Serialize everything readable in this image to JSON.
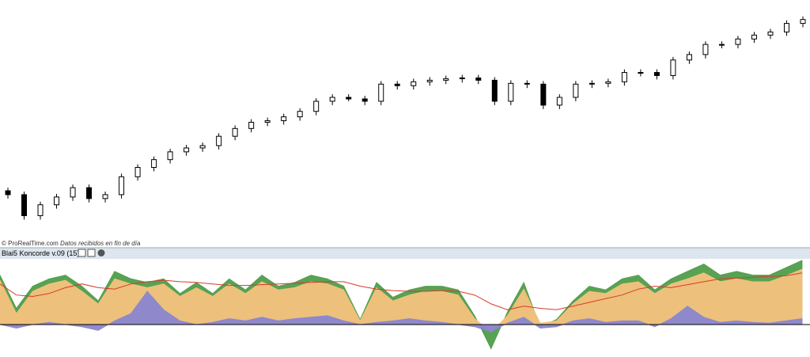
{
  "credit": "© ProRealTime.com",
  "credit_note": "Datos recibidos en fin de día",
  "chart_data": [
    {
      "type": "candlestick",
      "ylim": [
        0,
        300
      ],
      "up_color": "#ffffff",
      "down_color": "#000000",
      "open": [
        60,
        55,
        28,
        42,
        52,
        64,
        50,
        55,
        78,
        90,
        100,
        110,
        115,
        118,
        130,
        140,
        148,
        150,
        155,
        162,
        175,
        180,
        178,
        175,
        197,
        195,
        200,
        202,
        204,
        205,
        202,
        175,
        198,
        197,
        170,
        180,
        197,
        198,
        200,
        212,
        212,
        208,
        228,
        235,
        248,
        248,
        255,
        260,
        264,
        275
      ],
      "high": [
        64,
        59,
        46,
        56,
        68,
        68,
        59,
        82,
        94,
        104,
        114,
        119,
        122,
        134,
        144,
        152,
        154,
        159,
        166,
        179,
        184,
        184,
        182,
        201,
        201,
        204,
        206,
        208,
        209,
        209,
        206,
        202,
        202,
        201,
        184,
        201,
        202,
        204,
        216,
        216,
        216,
        232,
        239,
        252,
        252,
        259,
        264,
        268,
        279,
        284
      ],
      "low": [
        50,
        23,
        23,
        37,
        47,
        45,
        45,
        50,
        73,
        85,
        95,
        105,
        110,
        113,
        125,
        135,
        143,
        145,
        150,
        157,
        170,
        175,
        170,
        170,
        190,
        190,
        195,
        197,
        199,
        197,
        170,
        170,
        192,
        165,
        165,
        175,
        192,
        193,
        195,
        207,
        203,
        203,
        223,
        230,
        243,
        243,
        250,
        255,
        259,
        270
      ],
      "close": [
        55,
        28,
        42,
        52,
        64,
        50,
        55,
        78,
        90,
        100,
        110,
        115,
        118,
        130,
        140,
        148,
        150,
        155,
        162,
        175,
        180,
        178,
        175,
        197,
        195,
        200,
        202,
        204,
        205,
        202,
        175,
        198,
        197,
        170,
        180,
        197,
        198,
        200,
        212,
        212,
        208,
        228,
        235,
        248,
        248,
        255,
        260,
        264,
        275,
        280
      ]
    },
    {
      "type": "area",
      "title": "Blai5 Koncorde v.09 (15)",
      "ylim": [
        -44,
        89
      ],
      "series": [
        {
          "color": "#4f9d4a",
          "values": [
            67,
            22,
            52,
            62,
            67,
            52,
            32,
            72,
            62,
            57,
            62,
            42,
            57,
            42,
            62,
            47,
            67,
            52,
            57,
            67,
            62,
            52,
            7,
            57,
            37,
            47,
            52,
            52,
            47,
            12,
            -33,
            17,
            57,
            -3,
            7,
            32,
            52,
            47,
            62,
            67,
            47,
            62,
            72,
            82,
            67,
            72,
            67,
            67,
            77,
            87
          ]
        },
        {
          "color": "#f6c27e",
          "values": [
            60,
            15,
            45,
            55,
            60,
            45,
            28,
            62,
            55,
            50,
            55,
            38,
            50,
            38,
            55,
            42,
            58,
            47,
            50,
            58,
            55,
            47,
            5,
            50,
            32,
            40,
            45,
            45,
            40,
            8,
            -10,
            12,
            48,
            2,
            5,
            28,
            45,
            42,
            55,
            58,
            42,
            55,
            62,
            70,
            58,
            62,
            58,
            58,
            66,
            75
          ]
        },
        {
          "color": "#8a86d0",
          "values": [
            0,
            -5,
            0,
            3,
            0,
            -3,
            -8,
            5,
            15,
            45,
            20,
            5,
            0,
            3,
            8,
            5,
            10,
            5,
            8,
            10,
            12,
            5,
            0,
            3,
            5,
            8,
            5,
            3,
            0,
            -3,
            -10,
            2,
            10,
            -5,
            -3,
            5,
            8,
            3,
            5,
            5,
            -3,
            8,
            25,
            10,
            3,
            5,
            3,
            2,
            5,
            8
          ]
        },
        {
          "color": "#d83a2a",
          "style": "line",
          "values": [
            55,
            40,
            38,
            42,
            50,
            55,
            50,
            48,
            55,
            58,
            60,
            58,
            57,
            55,
            53,
            53,
            54,
            55,
            56,
            57,
            58,
            58,
            52,
            48,
            46,
            45,
            45,
            46,
            45,
            40,
            28,
            20,
            25,
            22,
            20,
            25,
            30,
            35,
            40,
            48,
            52,
            50,
            54,
            58,
            62,
            63,
            64,
            65,
            66,
            70
          ]
        }
      ]
    }
  ]
}
